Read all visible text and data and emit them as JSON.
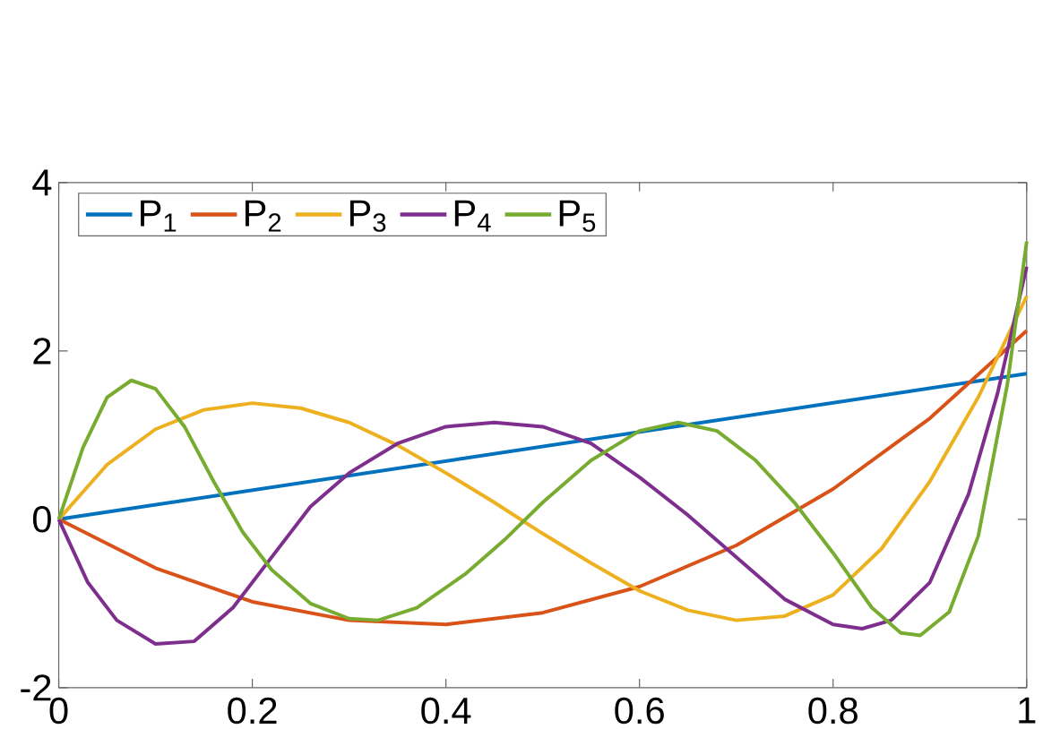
{
  "chart_data": {
    "type": "line",
    "xlim": [
      0,
      1
    ],
    "ylim": [
      -2,
      4
    ],
    "xticks": [
      0,
      0.2,
      0.4,
      0.6,
      0.8,
      1
    ],
    "yticks": [
      -2,
      0,
      2,
      4
    ],
    "legend": "top left",
    "grid": false,
    "marker": "none",
    "line_style": "solid",
    "series": [
      {
        "name": "P$_{1}$",
        "color": "#0072bd",
        "x": [
          0,
          1
        ],
        "values": [
          0,
          1.73
        ]
      },
      {
        "name": "P$_{2}$",
        "color": "#d95319",
        "x": [
          0,
          0.1,
          0.2,
          0.3,
          0.4,
          0.5,
          0.6,
          0.7,
          0.8,
          0.9,
          1
        ],
        "values": [
          0,
          -0.58,
          -0.98,
          -1.2,
          -1.25,
          -1.11,
          -0.8,
          -0.31,
          0.36,
          1.2,
          2.24
        ]
      },
      {
        "name": "P$_{3}$",
        "color": "#edb120",
        "x": [
          0,
          0.05,
          0.1,
          0.15,
          0.2,
          0.25,
          0.3,
          0.35,
          0.4,
          0.45,
          0.5,
          0.55,
          0.6,
          0.65,
          0.7,
          0.75,
          0.8,
          0.85,
          0.9,
          0.95,
          1
        ],
        "values": [
          0,
          0.65,
          1.07,
          1.3,
          1.38,
          1.32,
          1.15,
          0.88,
          0.55,
          0.2,
          -0.17,
          -0.52,
          -0.85,
          -1.08,
          -1.2,
          -1.15,
          -0.9,
          -0.35,
          0.45,
          1.45,
          2.65
        ]
      },
      {
        "name": "P$_{4}$",
        "color": "#7e2f8e",
        "x": [
          0,
          0.03,
          0.06,
          0.1,
          0.14,
          0.18,
          0.22,
          0.26,
          0.3,
          0.35,
          0.4,
          0.45,
          0.5,
          0.55,
          0.6,
          0.65,
          0.7,
          0.75,
          0.8,
          0.83,
          0.86,
          0.9,
          0.94,
          0.97,
          1
        ],
        "values": [
          0,
          -0.75,
          -1.2,
          -1.48,
          -1.45,
          -1.05,
          -0.45,
          0.15,
          0.55,
          0.9,
          1.1,
          1.15,
          1.1,
          0.9,
          0.5,
          0.05,
          -0.45,
          -0.95,
          -1.25,
          -1.3,
          -1.2,
          -0.75,
          0.3,
          1.5,
          3.0
        ]
      },
      {
        "name": "P$_{5}$",
        "color": "#77ac30",
        "x": [
          0,
          0.025,
          0.05,
          0.075,
          0.1,
          0.13,
          0.16,
          0.19,
          0.22,
          0.26,
          0.3,
          0.33,
          0.37,
          0.42,
          0.46,
          0.5,
          0.55,
          0.6,
          0.64,
          0.68,
          0.72,
          0.76,
          0.8,
          0.84,
          0.87,
          0.89,
          0.92,
          0.95,
          0.98,
          1
        ],
        "values": [
          0,
          0.85,
          1.45,
          1.65,
          1.55,
          1.1,
          0.45,
          -0.15,
          -0.6,
          -1.0,
          -1.18,
          -1.2,
          -1.05,
          -0.65,
          -0.25,
          0.2,
          0.7,
          1.05,
          1.15,
          1.05,
          0.7,
          0.2,
          -0.4,
          -1.05,
          -1.35,
          -1.38,
          -1.1,
          -0.2,
          1.6,
          3.3
        ]
      }
    ]
  }
}
